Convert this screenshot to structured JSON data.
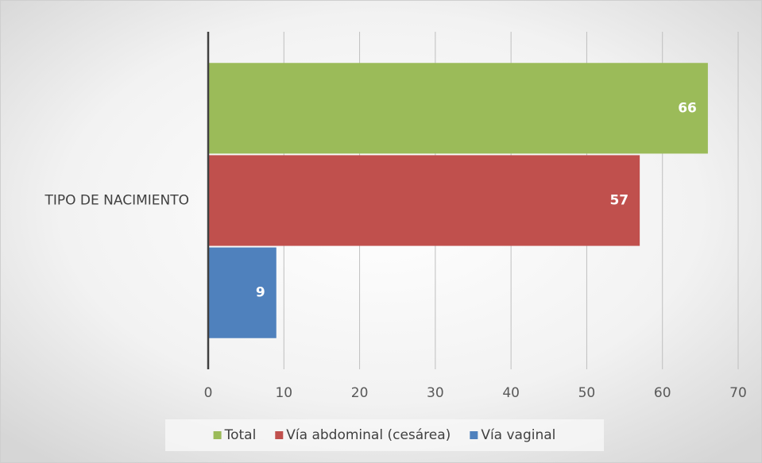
{
  "chart_data": {
    "type": "bar",
    "orientation": "horizontal",
    "categories": [
      "TIPO DE NACIMIENTO"
    ],
    "series": [
      {
        "name": "Total",
        "color": "#9bbb59",
        "values": [
          66
        ]
      },
      {
        "name": "Vía abdominal (cesárea)",
        "color": "#c0504d",
        "values": [
          57
        ]
      },
      {
        "name": "Vía vaginal",
        "color": "#4f81bd",
        "values": [
          9
        ]
      }
    ],
    "xlim": [
      0,
      70
    ],
    "xticks": [
      0,
      10,
      20,
      30,
      40,
      50,
      60,
      70
    ],
    "grid": true,
    "legend": "bottom",
    "data_labels": true
  }
}
